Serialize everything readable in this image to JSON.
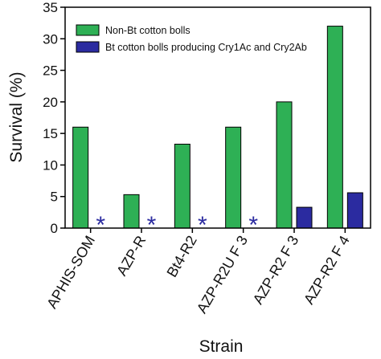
{
  "chart_data": {
    "type": "bar",
    "xlabel": "Strain",
    "ylabel": "Survival (%)",
    "ylim": [
      0,
      35
    ],
    "yticks": [
      "0",
      "5",
      "10",
      "15",
      "20",
      "25",
      "30",
      "35"
    ],
    "categories": [
      "APHIS-SOM",
      "AZP-R",
      "Bt4-R2",
      "AZP-R2U F 3",
      "AZP-R2 F 3",
      "AZP-R2 F 4"
    ],
    "series": [
      {
        "name": "Non-Bt cotton bolls",
        "color": "#2eb055",
        "values": [
          16.0,
          5.3,
          13.3,
          16.0,
          20.0,
          32.0
        ]
      },
      {
        "name": "Bt cotton bolls producing Cry1Ac and Cry2Ab",
        "color": "#2b2ba0",
        "values": [
          0,
          0,
          0,
          0,
          3.3,
          5.6
        ]
      }
    ],
    "annotations": {
      "zero_marker": "*",
      "marker_color": "#2b2ba0",
      "marked_series": 1
    },
    "grid": false,
    "legend_position": "top-left"
  }
}
